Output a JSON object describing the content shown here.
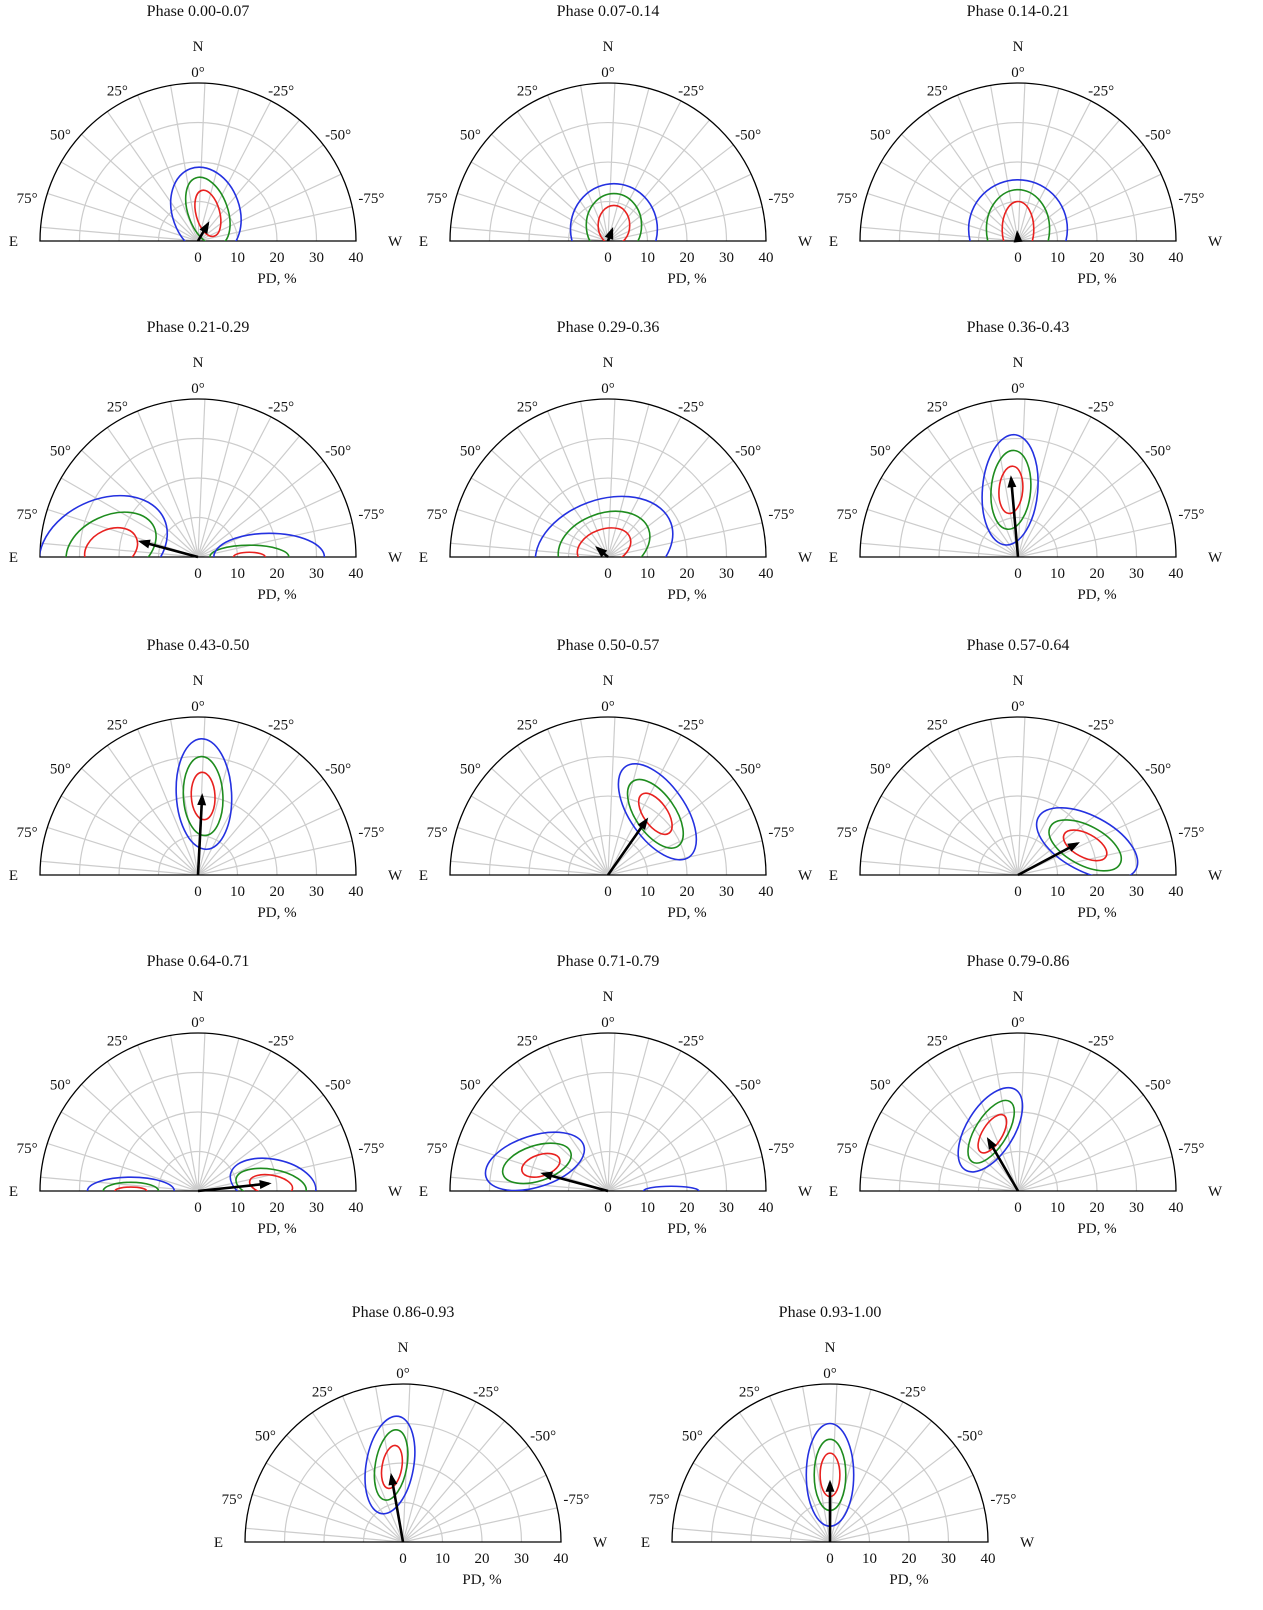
{
  "figure": {
    "colors": {
      "frame": "#000000",
      "grid": "#cccccc",
      "contour_inner": "#e8211f",
      "contour_middle": "#1e8c1e",
      "contour_outer": "#2431e0",
      "arrow": "#000000"
    }
  },
  "chart_data": [
    {
      "type": "polar",
      "title": "Phase 0.00-0.07",
      "xlabel": "PD, %",
      "rlim": [
        0,
        40
      ],
      "r_ticks": [
        "0",
        "10",
        "20",
        "30",
        "40"
      ],
      "angle_ticks": [
        "0°",
        "25°",
        "50°",
        "75°",
        "-25°",
        "-50°",
        "-75°"
      ],
      "compass": {
        "north": "N",
        "east": "E",
        "west": "W"
      },
      "arrow": {
        "pd": 5,
        "pa": -30
      },
      "contours": [
        {
          "level": "inner",
          "center": [
            2.5,
            7
          ],
          "semi": [
            3,
            6
          ],
          "tilt": -15
        },
        {
          "level": "middle",
          "center": [
            2.5,
            7.5
          ],
          "semi": [
            5,
            9
          ],
          "tilt": -20
        },
        {
          "level": "outer",
          "center": [
            2,
            7.5
          ],
          "semi": [
            8.5,
            11.5
          ],
          "tilt": -20
        }
      ]
    },
    {
      "type": "polar",
      "title": "Phase 0.07-0.14",
      "xlabel": "PD, %",
      "rlim": [
        0,
        40
      ],
      "r_ticks": [
        "0",
        "10",
        "20",
        "30",
        "40"
      ],
      "angle_ticks": [
        "0°",
        "25°",
        "50°",
        "75°",
        "-25°",
        "-50°",
        "-75°"
      ],
      "compass": {
        "north": "N",
        "east": "E",
        "west": "W"
      },
      "arrow": {
        "pd": 3,
        "pa": -20
      },
      "contours": [
        {
          "level": "inner",
          "center": [
            1.5,
            4
          ],
          "semi": [
            4,
            5
          ],
          "tilt": 0
        },
        {
          "level": "middle",
          "center": [
            1.5,
            4
          ],
          "semi": [
            7,
            8
          ],
          "tilt": 0
        },
        {
          "level": "outer",
          "center": [
            1.5,
            3
          ],
          "semi": [
            11,
            11.5
          ],
          "tilt": 0
        }
      ]
    },
    {
      "type": "polar",
      "title": "Phase 0.14-0.21",
      "xlabel": "PD, %",
      "rlim": [
        0,
        40
      ],
      "r_ticks": [
        "0",
        "10",
        "20",
        "30",
        "40"
      ],
      "angle_ticks": [
        "0°",
        "25°",
        "50°",
        "75°",
        "-25°",
        "-50°",
        "-75°"
      ],
      "compass": {
        "north": "N",
        "east": "E",
        "west": "W"
      },
      "arrow": {
        "pd": 2,
        "pa": 5
      },
      "contours": [
        {
          "level": "inner",
          "center": [
            0,
            3
          ],
          "semi": [
            4,
            7
          ],
          "tilt": 0
        },
        {
          "level": "middle",
          "center": [
            0,
            3
          ],
          "semi": [
            8,
            10
          ],
          "tilt": 0
        },
        {
          "level": "outer",
          "center": [
            0,
            3
          ],
          "semi": [
            12.5,
            12.5
          ],
          "tilt": 0
        }
      ]
    },
    {
      "type": "polar",
      "title": "Phase 0.21-0.29",
      "xlabel": "PD, %",
      "rlim": [
        0,
        40
      ],
      "r_ticks": [
        "0",
        "10",
        "20",
        "30",
        "40"
      ],
      "angle_ticks": [
        "0°",
        "25°",
        "50°",
        "75°",
        "-25°",
        "-50°",
        "-75°"
      ],
      "compass": {
        "north": "N",
        "east": "E",
        "west": "W"
      },
      "arrow": {
        "pd": 15,
        "pa": 75
      },
      "contours": [
        {
          "level": "inner",
          "center": [
            -22,
            2
          ],
          "semi": [
            7,
            5
          ],
          "tilt": -25
        },
        {
          "level": "middle",
          "center": [
            -22,
            2.5
          ],
          "semi": [
            12,
            8
          ],
          "tilt": -25
        },
        {
          "level": "outer",
          "center": [
            -24,
            2.5
          ],
          "semi": [
            17,
            12
          ],
          "tilt": -25
        },
        {
          "level": "inner",
          "center": [
            13,
            0
          ],
          "semi": [
            4,
            1.2
          ],
          "tilt": 0
        },
        {
          "level": "middle",
          "center": [
            13,
            0
          ],
          "semi": [
            10,
            3
          ],
          "tilt": 0
        },
        {
          "level": "outer",
          "center": [
            18,
            0
          ],
          "semi": [
            14,
            6
          ],
          "tilt": 0
        }
      ]
    },
    {
      "type": "polar",
      "title": "Phase 0.29-0.36",
      "xlabel": "PD, %",
      "rlim": [
        0,
        40
      ],
      "r_ticks": [
        "0",
        "10",
        "20",
        "30",
        "40"
      ],
      "angle_ticks": [
        "0°",
        "25°",
        "50°",
        "75°",
        "-25°",
        "-50°",
        "-75°"
      ],
      "compass": {
        "north": "N",
        "east": "E",
        "west": "W"
      },
      "arrow": {
        "pd": 3.5,
        "pa": 50
      },
      "contours": [
        {
          "level": "inner",
          "center": [
            -1,
            2.5
          ],
          "semi": [
            7,
            4.5
          ],
          "tilt": -20
        },
        {
          "level": "middle",
          "center": [
            -1,
            3
          ],
          "semi": [
            12,
            8
          ],
          "tilt": -20
        },
        {
          "level": "outer",
          "center": [
            -1,
            2.5
          ],
          "semi": [
            18,
            12
          ],
          "tilt": -20
        }
      ]
    },
    {
      "type": "polar",
      "title": "Phase 0.36-0.43",
      "xlabel": "PD, %",
      "rlim": [
        0,
        40
      ],
      "r_ticks": [
        "0",
        "10",
        "20",
        "30",
        "40"
      ],
      "angle_ticks": [
        "0°",
        "25°",
        "50°",
        "75°",
        "-25°",
        "-50°",
        "-75°"
      ],
      "compass": {
        "north": "N",
        "east": "E",
        "west": "W"
      },
      "arrow": {
        "pd": 20,
        "pa": 5
      },
      "contours": [
        {
          "level": "inner",
          "center": [
            -1.8,
            17
          ],
          "semi": [
            3,
            6
          ],
          "tilt": 5
        },
        {
          "level": "middle",
          "center": [
            -1.8,
            17
          ],
          "semi": [
            5,
            10
          ],
          "tilt": 5
        },
        {
          "level": "outer",
          "center": [
            -2,
            17
          ],
          "semi": [
            7,
            14
          ],
          "tilt": 5
        }
      ]
    },
    {
      "type": "polar",
      "title": "Phase 0.43-0.50",
      "xlabel": "PD, %",
      "rlim": [
        0,
        40
      ],
      "r_ticks": [
        "0",
        "10",
        "20",
        "30",
        "40"
      ],
      "angle_ticks": [
        "0°",
        "25°",
        "50°",
        "75°",
        "-25°",
        "-50°",
        "-75°"
      ],
      "compass": {
        "north": "N",
        "east": "E",
        "west": "W"
      },
      "arrow": {
        "pd": 20,
        "pa": -3
      },
      "contours": [
        {
          "level": "inner",
          "center": [
            1.3,
            20
          ],
          "semi": [
            3,
            6
          ],
          "tilt": -3
        },
        {
          "level": "middle",
          "center": [
            1.3,
            20
          ],
          "semi": [
            5,
            10
          ],
          "tilt": -3
        },
        {
          "level": "outer",
          "center": [
            1.5,
            20.5
          ],
          "semi": [
            7,
            14
          ],
          "tilt": -3
        }
      ]
    },
    {
      "type": "polar",
      "title": "Phase 0.50-0.57",
      "xlabel": "PD, %",
      "rlim": [
        0,
        40
      ],
      "r_ticks": [
        "0",
        "10",
        "20",
        "30",
        "40"
      ],
      "angle_ticks": [
        "0°",
        "25°",
        "50°",
        "75°",
        "-25°",
        "-50°",
        "-75°"
      ],
      "compass": {
        "north": "N",
        "east": "E",
        "west": "W"
      },
      "arrow": {
        "pd": 17,
        "pa": -35
      },
      "contours": [
        {
          "level": "inner",
          "center": [
            12,
            15.5
          ],
          "semi": [
            3,
            6
          ],
          "tilt": -35
        },
        {
          "level": "middle",
          "center": [
            12,
            15.5
          ],
          "semi": [
            5,
            10
          ],
          "tilt": -35
        },
        {
          "level": "outer",
          "center": [
            12.5,
            16
          ],
          "semi": [
            7,
            14
          ],
          "tilt": -35
        }
      ]
    },
    {
      "type": "polar",
      "title": "Phase 0.57-0.64",
      "xlabel": "PD, %",
      "rlim": [
        0,
        40
      ],
      "r_ticks": [
        "0",
        "10",
        "20",
        "30",
        "40"
      ],
      "angle_ticks": [
        "0°",
        "25°",
        "50°",
        "75°",
        "-25°",
        "-50°",
        "-75°"
      ],
      "compass": {
        "north": "N",
        "east": "E",
        "west": "W"
      },
      "arrow": {
        "pd": 17,
        "pa": -62
      },
      "contours": [
        {
          "level": "inner",
          "center": [
            17,
            7.5
          ],
          "semi": [
            3,
            6
          ],
          "tilt": -62
        },
        {
          "level": "middle",
          "center": [
            17,
            7.5
          ],
          "semi": [
            5,
            10
          ],
          "tilt": -62
        },
        {
          "level": "outer",
          "center": [
            17.5,
            8
          ],
          "semi": [
            7,
            14
          ],
          "tilt": -62
        }
      ]
    },
    {
      "type": "polar",
      "title": "Phase 0.64-0.71",
      "xlabel": "PD, %",
      "rlim": [
        0,
        40
      ],
      "r_ticks": [
        "0",
        "10",
        "20",
        "30",
        "40"
      ],
      "angle_ticks": [
        "0°",
        "25°",
        "50°",
        "75°",
        "-25°",
        "-50°",
        "-75°"
      ],
      "compass": {
        "north": "N",
        "east": "E",
        "west": "W"
      },
      "arrow": {
        "pd": 18,
        "pa": -84
      },
      "contours": [
        {
          "level": "inner",
          "center": [
            18.5,
            1.5
          ],
          "semi": [
            2.5,
            5.5
          ],
          "tilt": -80
        },
        {
          "level": "middle",
          "center": [
            18.5,
            1.5
          ],
          "semi": [
            4,
            9
          ],
          "tilt": -80
        },
        {
          "level": "outer",
          "center": [
            19,
            2
          ],
          "semi": [
            6,
            11
          ],
          "tilt": -78
        },
        {
          "level": "inner",
          "center": [
            -17,
            0
          ],
          "semi": [
            4,
            1
          ],
          "tilt": 0
        },
        {
          "level": "middle",
          "center": [
            -17,
            0
          ],
          "semi": [
            7,
            2.2
          ],
          "tilt": 0
        },
        {
          "level": "outer",
          "center": [
            -17,
            0
          ],
          "semi": [
            11,
            3.5
          ],
          "tilt": 0
        }
      ]
    },
    {
      "type": "polar",
      "title": "Phase 0.71-0.79",
      "xlabel": "PD, %",
      "rlim": [
        0,
        40
      ],
      "r_ticks": [
        "0",
        "10",
        "20",
        "30",
        "40"
      ],
      "angle_ticks": [
        "0°",
        "25°",
        "50°",
        "75°",
        "-25°",
        "-50°",
        "-75°"
      ],
      "compass": {
        "north": "N",
        "east": "E",
        "west": "W"
      },
      "arrow": {
        "pd": 17,
        "pa": 75
      },
      "contours": [
        {
          "level": "inner",
          "center": [
            -17,
            6.5
          ],
          "semi": [
            5,
            2.7
          ],
          "tilt": -18
        },
        {
          "level": "middle",
          "center": [
            -18,
            7
          ],
          "semi": [
            9,
            4.5
          ],
          "tilt": -18
        },
        {
          "level": "outer",
          "center": [
            -18.5,
            7.5
          ],
          "semi": [
            13,
            6.5
          ],
          "tilt": -18
        },
        {
          "level": "outer",
          "center": [
            16,
            0
          ],
          "semi": [
            7,
            1.2
          ],
          "tilt": 0
        }
      ]
    },
    {
      "type": "polar",
      "title": "Phase 0.79-0.86",
      "xlabel": "PD, %",
      "rlim": [
        0,
        40
      ],
      "r_ticks": [
        "0",
        "10",
        "20",
        "30",
        "40"
      ],
      "angle_ticks": [
        "0°",
        "25°",
        "50°",
        "75°",
        "-25°",
        "-50°",
        "-75°"
      ],
      "compass": {
        "north": "N",
        "east": "E",
        "west": "W"
      },
      "arrow": {
        "pd": 15,
        "pa": 30
      },
      "contours": [
        {
          "level": "inner",
          "center": [
            -6.5,
            14.5
          ],
          "semi": [
            2.5,
            5.5
          ],
          "tilt": 32
        },
        {
          "level": "middle",
          "center": [
            -6.8,
            15
          ],
          "semi": [
            4,
            9
          ],
          "tilt": 32
        },
        {
          "level": "outer",
          "center": [
            -7,
            15.5
          ],
          "semi": [
            6,
            12
          ],
          "tilt": 32
        }
      ]
    },
    {
      "type": "polar",
      "title": "Phase 0.86-0.93",
      "xlabel": "PD, %",
      "rlim": [
        0,
        40
      ],
      "r_ticks": [
        "0",
        "10",
        "20",
        "30",
        "40"
      ],
      "angle_ticks": [
        "0°",
        "25°",
        "50°",
        "75°",
        "-25°",
        "-50°",
        "-75°"
      ],
      "compass": {
        "north": "N",
        "east": "E",
        "west": "W"
      },
      "arrow": {
        "pd": 17,
        "pa": 10
      },
      "contours": [
        {
          "level": "inner",
          "center": [
            -2.8,
            19
          ],
          "semi": [
            2.5,
            5.5
          ],
          "tilt": 10
        },
        {
          "level": "middle",
          "center": [
            -3,
            19.5
          ],
          "semi": [
            4,
            9
          ],
          "tilt": 10
        },
        {
          "level": "outer",
          "center": [
            -3.3,
            19.5
          ],
          "semi": [
            6,
            12.5
          ],
          "tilt": 10
        }
      ]
    },
    {
      "type": "polar",
      "title": "Phase 0.93-1.00",
      "xlabel": "PD, %",
      "rlim": [
        0,
        40
      ],
      "r_ticks": [
        "0",
        "10",
        "20",
        "30",
        "40"
      ],
      "angle_ticks": [
        "0°",
        "25°",
        "50°",
        "75°",
        "-25°",
        "-50°",
        "-75°"
      ],
      "compass": {
        "north": "N",
        "east": "E",
        "west": "W"
      },
      "arrow": {
        "pd": 15,
        "pa": 0
      },
      "contours": [
        {
          "level": "inner",
          "center": [
            0,
            17
          ],
          "semi": [
            2.5,
            5.5
          ],
          "tilt": 0
        },
        {
          "level": "middle",
          "center": [
            0,
            17
          ],
          "semi": [
            4,
            9
          ],
          "tilt": 0
        },
        {
          "level": "outer",
          "center": [
            0,
            17
          ],
          "semi": [
            6,
            13
          ],
          "tilt": 0
        }
      ]
    }
  ]
}
